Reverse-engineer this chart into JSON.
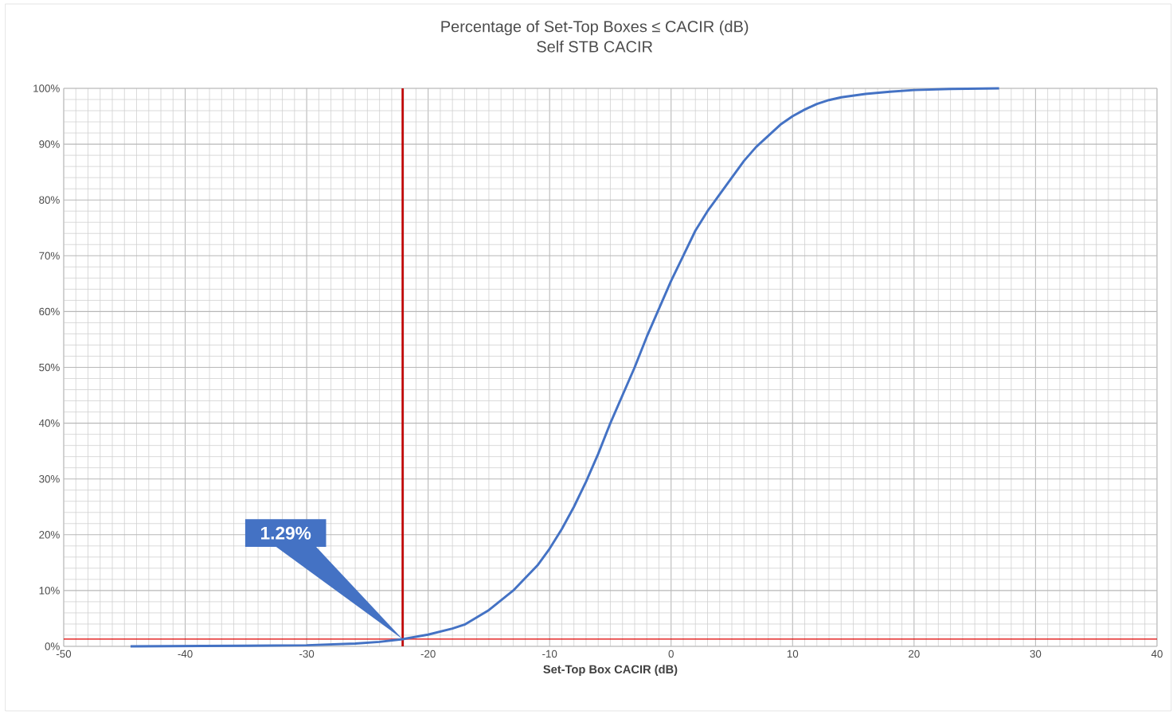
{
  "chart_data": {
    "type": "line",
    "title": "Percentage of Set-Top Boxes ≤ CACIR (dB)",
    "subtitle": "Self STB CACIR",
    "xlabel": "Set-Top  Box CACIR (dB)",
    "x": [
      -44.5,
      -35,
      -30,
      -26,
      -24,
      -22.1,
      -20,
      -18,
      -17,
      -15,
      -13,
      -11,
      -10,
      -9,
      -8,
      -7,
      -6,
      -5,
      -4,
      -3,
      -2,
      -1,
      0,
      1,
      2,
      3,
      4,
      5,
      6,
      7,
      8,
      9,
      10,
      11,
      12,
      13,
      14,
      16,
      18,
      20,
      23,
      27
    ],
    "series": [
      {
        "color": "#4472c4",
        "values": [
          0,
          0.1,
          0.2,
          0.5,
          0.8,
          1.29,
          2.1,
          3.2,
          3.9,
          6.5,
          10,
          14.5,
          17.5,
          21,
          25,
          29.5,
          34.5,
          40,
          45,
          50,
          55.5,
          60.5,
          65.5,
          70,
          74.5,
          78,
          81,
          84,
          87,
          89.5,
          91.5,
          93.5,
          95,
          96.2,
          97.2,
          97.9,
          98.4,
          99,
          99.4,
          99.7,
          99.9,
          100
        ]
      }
    ],
    "xlim": [
      -50,
      40
    ],
    "xticks": [
      -50,
      -40,
      -30,
      -20,
      -10,
      0,
      10,
      20,
      30,
      40
    ],
    "ylim": [
      0,
      100
    ],
    "yticks": [
      {
        "value": 0,
        "label": "0%"
      },
      {
        "value": 10,
        "label": "10%"
      },
      {
        "value": 20,
        "label": "20%"
      },
      {
        "value": 30,
        "label": "30%"
      },
      {
        "value": 40,
        "label": "40%"
      },
      {
        "value": 50,
        "label": "50%"
      },
      {
        "value": 60,
        "label": "60%"
      },
      {
        "value": 70,
        "label": "70%"
      },
      {
        "value": 80,
        "label": "80%"
      },
      {
        "value": 90,
        "label": "90%"
      },
      {
        "value": 100,
        "label": "100%"
      }
    ],
    "ref_lines": [
      {
        "axis": "x",
        "value": -22.1,
        "color": "#c00000"
      },
      {
        "axis": "y",
        "value": 1.29,
        "color": "#e00000"
      }
    ],
    "annotations": [
      "1.29%"
    ],
    "grid": true,
    "marker": "none",
    "line_style": "solid"
  }
}
